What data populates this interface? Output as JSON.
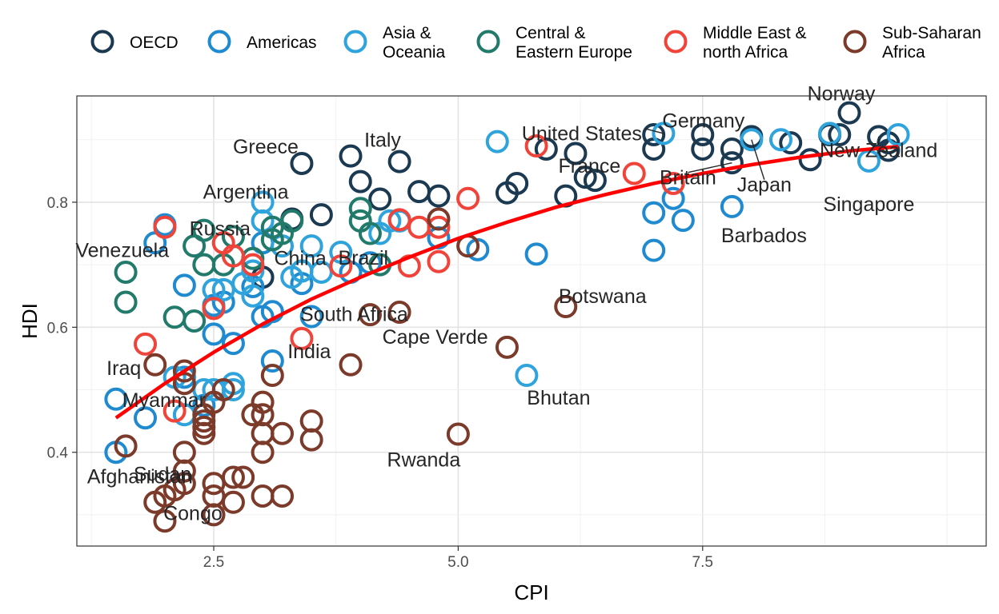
{
  "chart_data": {
    "type": "scatter",
    "xlabel": "CPI",
    "ylabel": "HDI",
    "xlim": [
      1.1,
      10.4
    ],
    "ylim": [
      0.25,
      0.97
    ],
    "x_ticks": [
      2.5,
      5.0,
      7.5
    ],
    "x_tick_labels": [
      "2.5",
      "5.0",
      "7.5"
    ],
    "y_ticks": [
      0.4,
      0.6,
      0.8
    ],
    "y_tick_labels": [
      "0.4",
      "0.6",
      "0.8"
    ],
    "grid": true,
    "legend_position": "top",
    "trend_line": {
      "color": "#ff0000",
      "points": [
        [
          1.5,
          0.455
        ],
        [
          2.0,
          0.51
        ],
        [
          2.5,
          0.56
        ],
        [
          3.0,
          0.605
        ],
        [
          3.5,
          0.645
        ],
        [
          4.0,
          0.68
        ],
        [
          4.5,
          0.712
        ],
        [
          5.0,
          0.742
        ],
        [
          5.5,
          0.768
        ],
        [
          6.0,
          0.792
        ],
        [
          6.5,
          0.812
        ],
        [
          7.0,
          0.83
        ],
        [
          7.5,
          0.846
        ],
        [
          8.0,
          0.86
        ],
        [
          8.5,
          0.872
        ],
        [
          9.0,
          0.882
        ],
        [
          9.5,
          0.889
        ]
      ]
    },
    "series": [
      {
        "name": "OECD",
        "color": "#1b3a52",
        "points": [
          [
            9.0,
            0.943
          ],
          [
            8.9,
            0.908
          ],
          [
            8.8,
            0.908
          ],
          [
            9.3,
            0.905
          ],
          [
            9.4,
            0.895
          ],
          [
            9.4,
            0.883
          ],
          [
            8.0,
            0.905
          ],
          [
            8.4,
            0.895
          ],
          [
            8.6,
            0.868
          ],
          [
            7.8,
            0.863
          ],
          [
            7.8,
            0.885
          ],
          [
            7.5,
            0.908
          ],
          [
            7.5,
            0.885
          ],
          [
            7.0,
            0.908
          ],
          [
            7.0,
            0.885
          ],
          [
            6.4,
            0.835
          ],
          [
            6.3,
            0.84
          ],
          [
            6.1,
            0.81
          ],
          [
            6.2,
            0.878
          ],
          [
            5.9,
            0.885
          ],
          [
            5.6,
            0.83
          ],
          [
            5.5,
            0.815
          ],
          [
            4.8,
            0.81
          ],
          [
            4.6,
            0.817
          ],
          [
            4.4,
            0.865
          ],
          [
            4.2,
            0.805
          ],
          [
            4.0,
            0.833
          ],
          [
            3.9,
            0.874
          ],
          [
            3.6,
            0.78
          ],
          [
            3.4,
            0.862
          ],
          [
            3.3,
            0.773
          ],
          [
            3.0,
            0.68
          ]
        ]
      },
      {
        "name": "Americas",
        "color": "#1f8ad0",
        "points": [
          [
            7.8,
            0.793
          ],
          [
            7.3,
            0.771
          ],
          [
            7.2,
            0.806
          ],
          [
            7.0,
            0.783
          ],
          [
            7.0,
            0.723
          ],
          [
            5.8,
            0.717
          ],
          [
            5.2,
            0.724
          ],
          [
            4.8,
            0.743
          ],
          [
            4.1,
            0.703
          ],
          [
            3.9,
            0.688
          ],
          [
            3.5,
            0.617
          ],
          [
            3.4,
            0.69
          ],
          [
            3.4,
            0.67
          ],
          [
            3.1,
            0.625
          ],
          [
            3.0,
            0.735
          ],
          [
            3.0,
            0.617
          ],
          [
            2.9,
            0.665
          ],
          [
            2.7,
            0.574
          ],
          [
            2.6,
            0.64
          ],
          [
            2.5,
            0.589
          ],
          [
            2.4,
            0.475
          ],
          [
            2.2,
            0.52
          ],
          [
            2.2,
            0.667
          ],
          [
            1.9,
            0.735
          ],
          [
            2.0,
            0.764
          ],
          [
            1.5,
            0.485
          ],
          [
            1.8,
            0.455
          ],
          [
            1.5,
            0.4
          ],
          [
            3.1,
            0.546
          ],
          [
            2.5,
            0.635
          ]
        ]
      },
      {
        "name": "Asia & Oceania",
        "color": "#2ea3dc",
        "points": [
          [
            9.5,
            0.908
          ],
          [
            9.2,
            0.866
          ],
          [
            8.8,
            0.91
          ],
          [
            8.0,
            0.9
          ],
          [
            8.3,
            0.9
          ],
          [
            7.1,
            0.91
          ],
          [
            5.4,
            0.897
          ],
          [
            5.7,
            0.523
          ],
          [
            4.4,
            0.77
          ],
          [
            4.3,
            0.77
          ],
          [
            4.2,
            0.75
          ],
          [
            3.8,
            0.72
          ],
          [
            3.6,
            0.688
          ],
          [
            3.5,
            0.73
          ],
          [
            3.4,
            0.69
          ],
          [
            3.3,
            0.68
          ],
          [
            3.2,
            0.73
          ],
          [
            3.0,
            0.8
          ],
          [
            3.0,
            0.77
          ],
          [
            2.9,
            0.69
          ],
          [
            2.8,
            0.67
          ],
          [
            2.7,
            0.51
          ],
          [
            2.7,
            0.5
          ],
          [
            2.6,
            0.66
          ],
          [
            2.5,
            0.66
          ],
          [
            2.5,
            0.5
          ],
          [
            2.4,
            0.5
          ],
          [
            2.2,
            0.46
          ],
          [
            2.1,
            0.52
          ],
          [
            2.9,
            0.65
          ]
        ]
      },
      {
        "name": "Central & Eastern Europe",
        "color": "#227a6b",
        "points": [
          [
            4.1,
            0.75
          ],
          [
            4.0,
            0.79
          ],
          [
            4.0,
            0.77
          ],
          [
            3.3,
            0.77
          ],
          [
            3.2,
            0.75
          ],
          [
            3.1,
            0.74
          ],
          [
            2.9,
            0.71
          ],
          [
            2.7,
            0.745
          ],
          [
            2.6,
            0.7
          ],
          [
            2.4,
            0.755
          ],
          [
            2.4,
            0.7
          ],
          [
            2.3,
            0.73
          ],
          [
            2.3,
            0.61
          ],
          [
            2.1,
            0.616
          ],
          [
            1.6,
            0.64
          ],
          [
            1.6,
            0.688
          ],
          [
            4.2,
            0.7
          ],
          [
            3.1,
            0.76
          ]
        ]
      },
      {
        "name": "Middle East & north Africa",
        "color": "#f0443a",
        "points": [
          [
            7.2,
            0.83
          ],
          [
            6.8,
            0.846
          ],
          [
            5.8,
            0.89
          ],
          [
            5.1,
            0.806
          ],
          [
            4.8,
            0.705
          ],
          [
            4.6,
            0.76
          ],
          [
            4.5,
            0.698
          ],
          [
            4.4,
            0.772
          ],
          [
            3.8,
            0.698
          ],
          [
            3.4,
            0.582
          ],
          [
            2.9,
            0.7
          ],
          [
            2.7,
            0.714
          ],
          [
            2.6,
            0.735
          ],
          [
            2.5,
            0.63
          ],
          [
            2.1,
            0.466
          ],
          [
            1.8,
            0.573
          ],
          [
            2.0,
            0.76
          ],
          [
            4.8,
            0.76
          ]
        ]
      },
      {
        "name": "Sub-Saharan Africa",
        "color": "#7b3a2a",
        "points": [
          [
            6.1,
            0.633
          ],
          [
            5.5,
            0.568
          ],
          [
            5.1,
            0.73
          ],
          [
            5.0,
            0.429
          ],
          [
            4.8,
            0.773
          ],
          [
            4.4,
            0.624
          ],
          [
            4.1,
            0.62
          ],
          [
            3.9,
            0.54
          ],
          [
            3.5,
            0.45
          ],
          [
            3.5,
            0.42
          ],
          [
            3.2,
            0.43
          ],
          [
            3.2,
            0.33
          ],
          [
            3.1,
            0.523
          ],
          [
            3.0,
            0.48
          ],
          [
            3.0,
            0.46
          ],
          [
            3.0,
            0.43
          ],
          [
            3.0,
            0.4
          ],
          [
            3.0,
            0.33
          ],
          [
            2.9,
            0.46
          ],
          [
            2.8,
            0.36
          ],
          [
            2.7,
            0.36
          ],
          [
            2.7,
            0.32
          ],
          [
            2.5,
            0.35
          ],
          [
            2.5,
            0.3
          ],
          [
            2.5,
            0.33
          ],
          [
            2.5,
            0.48
          ],
          [
            2.4,
            0.46
          ],
          [
            2.4,
            0.45
          ],
          [
            2.4,
            0.44
          ],
          [
            2.4,
            0.43
          ],
          [
            2.2,
            0.53
          ],
          [
            2.2,
            0.4
          ],
          [
            2.2,
            0.37
          ],
          [
            2.2,
            0.35
          ],
          [
            2.1,
            0.34
          ],
          [
            2.0,
            0.33
          ],
          [
            2.0,
            0.29
          ],
          [
            1.9,
            0.32
          ],
          [
            1.9,
            0.54
          ],
          [
            1.6,
            0.41
          ],
          [
            2.2,
            0.51
          ],
          [
            2.6,
            0.5
          ]
        ]
      }
    ],
    "annotations": [
      {
        "text": "Norway",
        "x": 9.0,
        "y": 0.943
      },
      {
        "text": "Germany",
        "x": 8.0,
        "y": 0.905
      },
      {
        "text": "United States",
        "x": 7.1,
        "y": 0.91
      },
      {
        "text": "New Zealand",
        "x": 9.3,
        "y": 0.905
      },
      {
        "text": "Japan",
        "x": 8.0,
        "y": 0.9
      },
      {
        "text": "Singapore",
        "x": 9.2,
        "y": 0.866
      },
      {
        "text": "France",
        "x": 6.4,
        "y": 0.835
      },
      {
        "text": "Britain",
        "x": 7.8,
        "y": 0.863
      },
      {
        "text": "Barbados",
        "x": 7.8,
        "y": 0.793
      },
      {
        "text": "Greece",
        "x": 3.4,
        "y": 0.862
      },
      {
        "text": "Italy",
        "x": 3.9,
        "y": 0.874
      },
      {
        "text": "Argentina",
        "x": 3.0,
        "y": 0.8
      },
      {
        "text": "Russia",
        "x": 2.4,
        "y": 0.755
      },
      {
        "text": "Brazil",
        "x": 3.8,
        "y": 0.72
      },
      {
        "text": "China",
        "x": 3.5,
        "y": 0.69
      },
      {
        "text": "Venezuela",
        "x": 1.9,
        "y": 0.735
      },
      {
        "text": "South Africa",
        "x": 4.1,
        "y": 0.62
      },
      {
        "text": "Botswana",
        "x": 6.1,
        "y": 0.633
      },
      {
        "text": "Cape Verde",
        "x": 5.1,
        "y": 0.568
      },
      {
        "text": "India",
        "x": 3.1,
        "y": 0.546
      },
      {
        "text": "Iraq",
        "x": 1.9,
        "y": 0.573
      },
      {
        "text": "Bhutan",
        "x": 5.7,
        "y": 0.523
      },
      {
        "text": "Myanmar",
        "x": 1.5,
        "y": 0.485
      },
      {
        "text": "Sudan",
        "x": 1.6,
        "y": 0.41
      },
      {
        "text": "Rwanda",
        "x": 5.0,
        "y": 0.429
      },
      {
        "text": "Afghanistan",
        "x": 1.5,
        "y": 0.4
      },
      {
        "text": "Congo",
        "x": 2.0,
        "y": 0.29
      }
    ]
  },
  "legend": [
    {
      "lines": [
        "OECD"
      ],
      "color": "#1b3a52"
    },
    {
      "lines": [
        "Americas"
      ],
      "color": "#1f8ad0"
    },
    {
      "lines": [
        "Asia &",
        "Oceania"
      ],
      "color": "#2ea3dc"
    },
    {
      "lines": [
        "Central &",
        "Eastern Europe"
      ],
      "color": "#227a6b"
    },
    {
      "lines": [
        "Middle East &",
        "north Africa"
      ],
      "color": "#f0443a"
    },
    {
      "lines": [
        "Sub-Saharan",
        "Africa"
      ],
      "color": "#7b3a2a"
    }
  ]
}
